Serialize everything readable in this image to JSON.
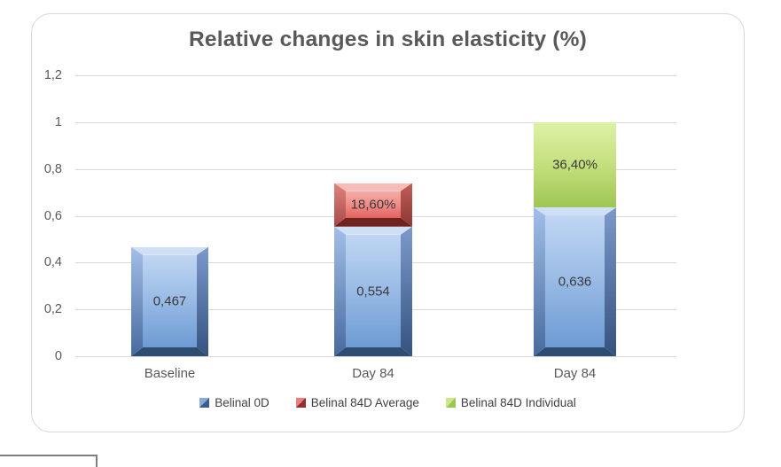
{
  "chart_data": {
    "type": "bar",
    "stacked": true,
    "title": "Relative changes in skin elasticity (%)",
    "categories": [
      "Baseline",
      "Day 84",
      "Day 84"
    ],
    "series": [
      {
        "name": "Belinal 0D",
        "color_key": "blue",
        "color": "#6d9bd4",
        "values": [
          0.467,
          0.554,
          0.636
        ],
        "labels": [
          "0,467",
          "0,554",
          "0,636"
        ]
      },
      {
        "name": "Belinal 84D Average",
        "color_key": "red",
        "color": "#e2625e",
        "values": [
          0,
          0.186,
          0
        ],
        "labels": [
          "",
          "18,60%",
          ""
        ]
      },
      {
        "name": "Belinal 84D Individual",
        "color_key": "green",
        "color": "#9dc653",
        "values": [
          0,
          0,
          0.364
        ],
        "labels": [
          "",
          "",
          "36,40%"
        ]
      }
    ],
    "y_axis": {
      "min": 0,
      "max": 1.2,
      "step": 0.2,
      "tick_labels": [
        "0",
        "0,2",
        "0,4",
        "0,6",
        "0,8",
        "1",
        "1,2"
      ]
    },
    "grid": true,
    "legend_position": "bottom",
    "colors": {
      "grid": "#d9d9d9",
      "axis_text": "#595959",
      "title_text": "#595959",
      "value_text": "#3a3a3a"
    }
  }
}
